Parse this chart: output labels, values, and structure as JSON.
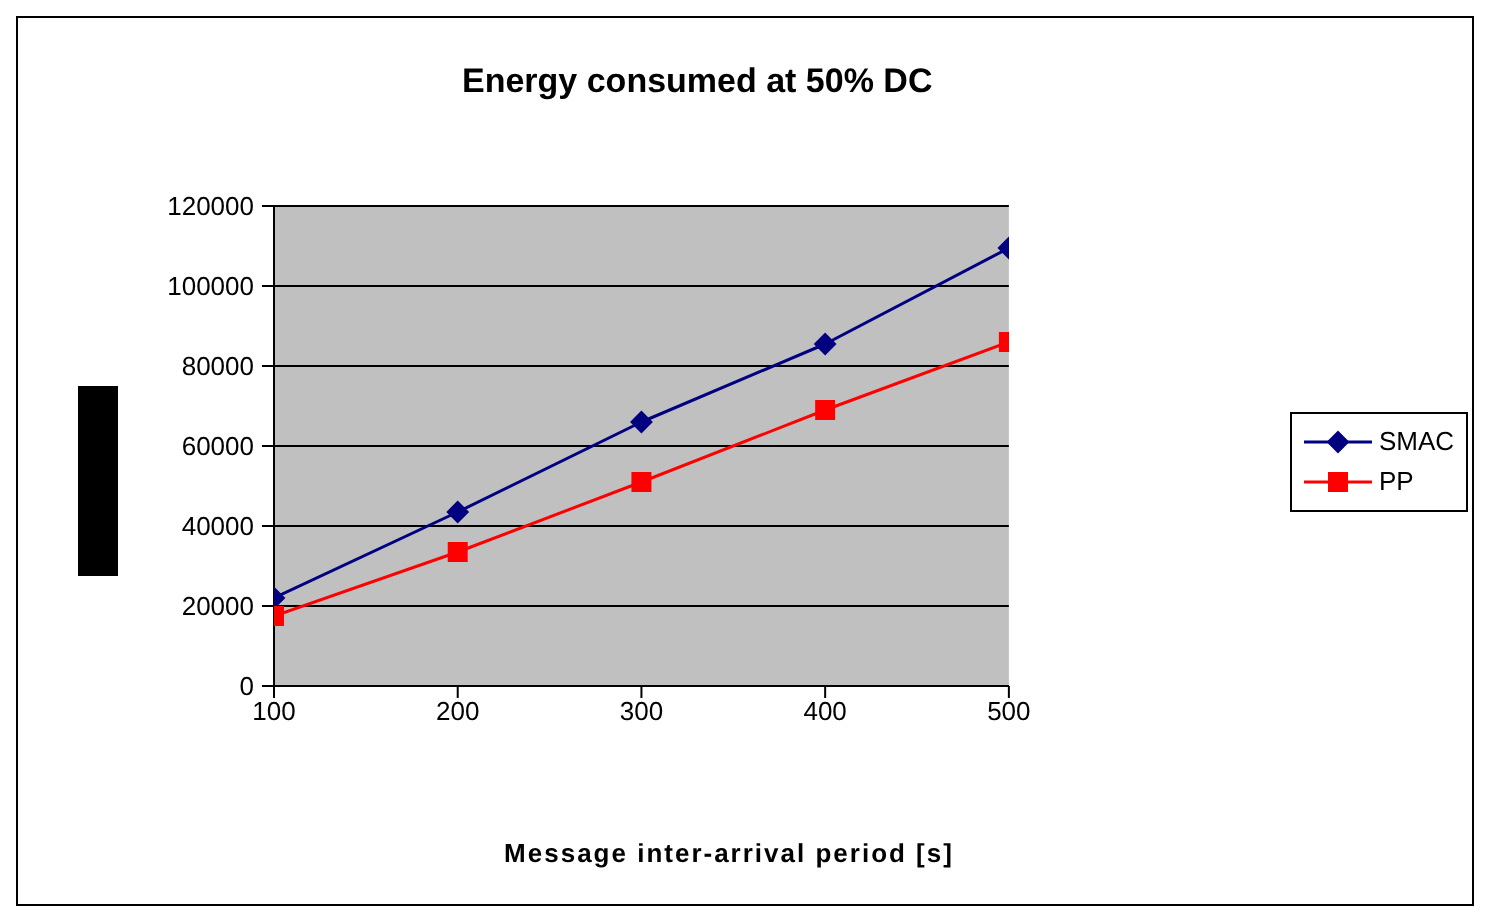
{
  "chart_data": {
    "type": "line",
    "title": "Energy consumed at 50% DC",
    "xlabel": "Message inter-arrival period [s]",
    "x": [
      100,
      200,
      300,
      400,
      500
    ],
    "series": [
      {
        "name": "SMAC",
        "color": "#000080",
        "marker": "diamond",
        "values": [
          22000,
          43500,
          66000,
          85500,
          109500
        ]
      },
      {
        "name": "PP",
        "color": "#ff0000",
        "marker": "square",
        "values": [
          17500,
          33500,
          51000,
          69000,
          86000
        ]
      }
    ],
    "xlim": [
      100,
      500
    ],
    "xticks": [
      100,
      200,
      300,
      400,
      500
    ],
    "ylim": [
      0,
      120000
    ],
    "yticks": [
      0,
      20000,
      40000,
      60000,
      80000,
      100000,
      120000
    ],
    "grid": "y",
    "legend": "right"
  }
}
